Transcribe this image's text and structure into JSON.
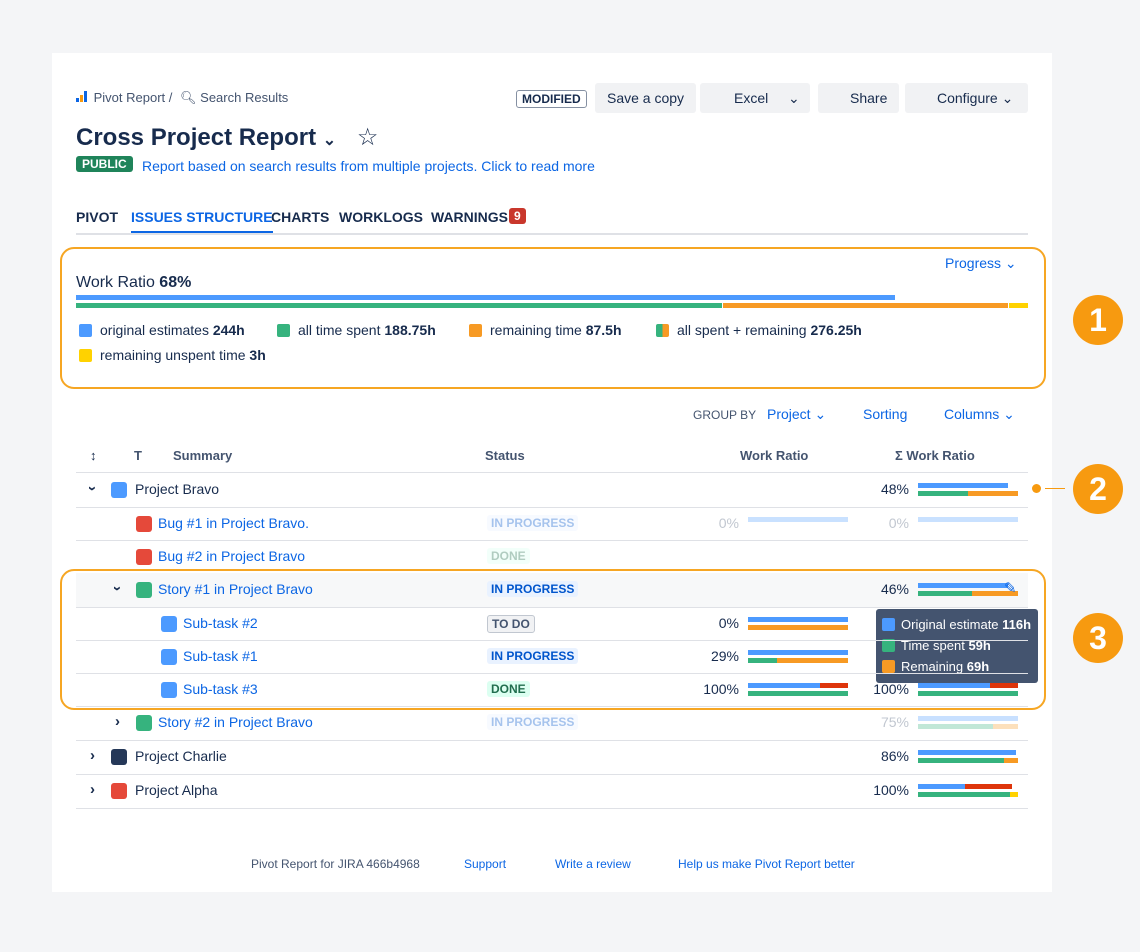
{
  "breadcrumb": {
    "app": "Pivot Report /",
    "page": "Search Results"
  },
  "toolbar": {
    "status": "MODIFIED",
    "save": "Save a copy",
    "excel": "Excel",
    "share": "Share",
    "configure": "Configure"
  },
  "header": {
    "title": "Cross Project Report",
    "badge": "PUBLIC",
    "description": "Report based on search results from multiple projects. Click to read more"
  },
  "tabs": [
    "PIVOT",
    "ISSUES STRUCTURE",
    "CHARTS",
    "WORKLOGS",
    "WARNINGS"
  ],
  "warnings_count": 9,
  "summary": {
    "label": "Work Ratio",
    "value": "68%",
    "mode": "Progress",
    "legend": [
      {
        "label": "original estimates",
        "value": "244h"
      },
      {
        "label": "all time spent",
        "value": "188.75h"
      },
      {
        "label": "remaining time",
        "value": "87.5h"
      },
      {
        "label": "all spent + remaining",
        "value": "276.25h"
      },
      {
        "label": "remaining unspent time",
        "value": "3h"
      }
    ]
  },
  "controls": {
    "group_by": "GROUP BY",
    "group": "Project",
    "sorting": "Sorting",
    "columns": "Columns"
  },
  "table": {
    "headers": [
      "T",
      "Summary",
      "Status",
      "Work Ratio",
      "Σ Work Ratio"
    ],
    "rows": [
      {
        "summary": "Project Bravo",
        "status": null,
        "ratio": null,
        "sum_ratio": "48%"
      },
      {
        "summary": "Bug #1 in Project Bravo.",
        "status": "IN PROGRESS",
        "ratio": "0%",
        "sum_ratio": "0%"
      },
      {
        "summary": "Bug #2 in Project Bravo",
        "status": "DONE",
        "ratio": null,
        "sum_ratio": null
      },
      {
        "summary": "Story #1 in Project Bravo",
        "status": "IN PROGRESS",
        "ratio": null,
        "sum_ratio": "46%"
      },
      {
        "summary": "Sub-task #2",
        "status": "TO DO",
        "ratio": "0%",
        "sum_ratio": null
      },
      {
        "summary": "Sub-task #1",
        "status": "IN PROGRESS",
        "ratio": "29%",
        "sum_ratio": null
      },
      {
        "summary": "Sub-task #3",
        "status": "DONE",
        "ratio": "100%",
        "sum_ratio": "100%"
      },
      {
        "summary": "Story #2 in Project Bravo",
        "status": "IN PROGRESS",
        "ratio": null,
        "sum_ratio": "75%"
      },
      {
        "summary": "Project Charlie",
        "status": null,
        "ratio": null,
        "sum_ratio": "86%"
      },
      {
        "summary": "Project Alpha",
        "status": null,
        "ratio": null,
        "sum_ratio": "100%"
      }
    ]
  },
  "tooltip": [
    {
      "label": "Original estimate",
      "value": "116h"
    },
    {
      "label": "Time spent",
      "value": "59h"
    },
    {
      "label": "Remaining",
      "value": "69h"
    }
  ],
  "callouts": [
    1,
    2,
    3
  ],
  "footer": [
    "Pivot Report for JIRA 466b4968",
    "Support",
    "Write a review",
    "Help us make Pivot Report better"
  ]
}
